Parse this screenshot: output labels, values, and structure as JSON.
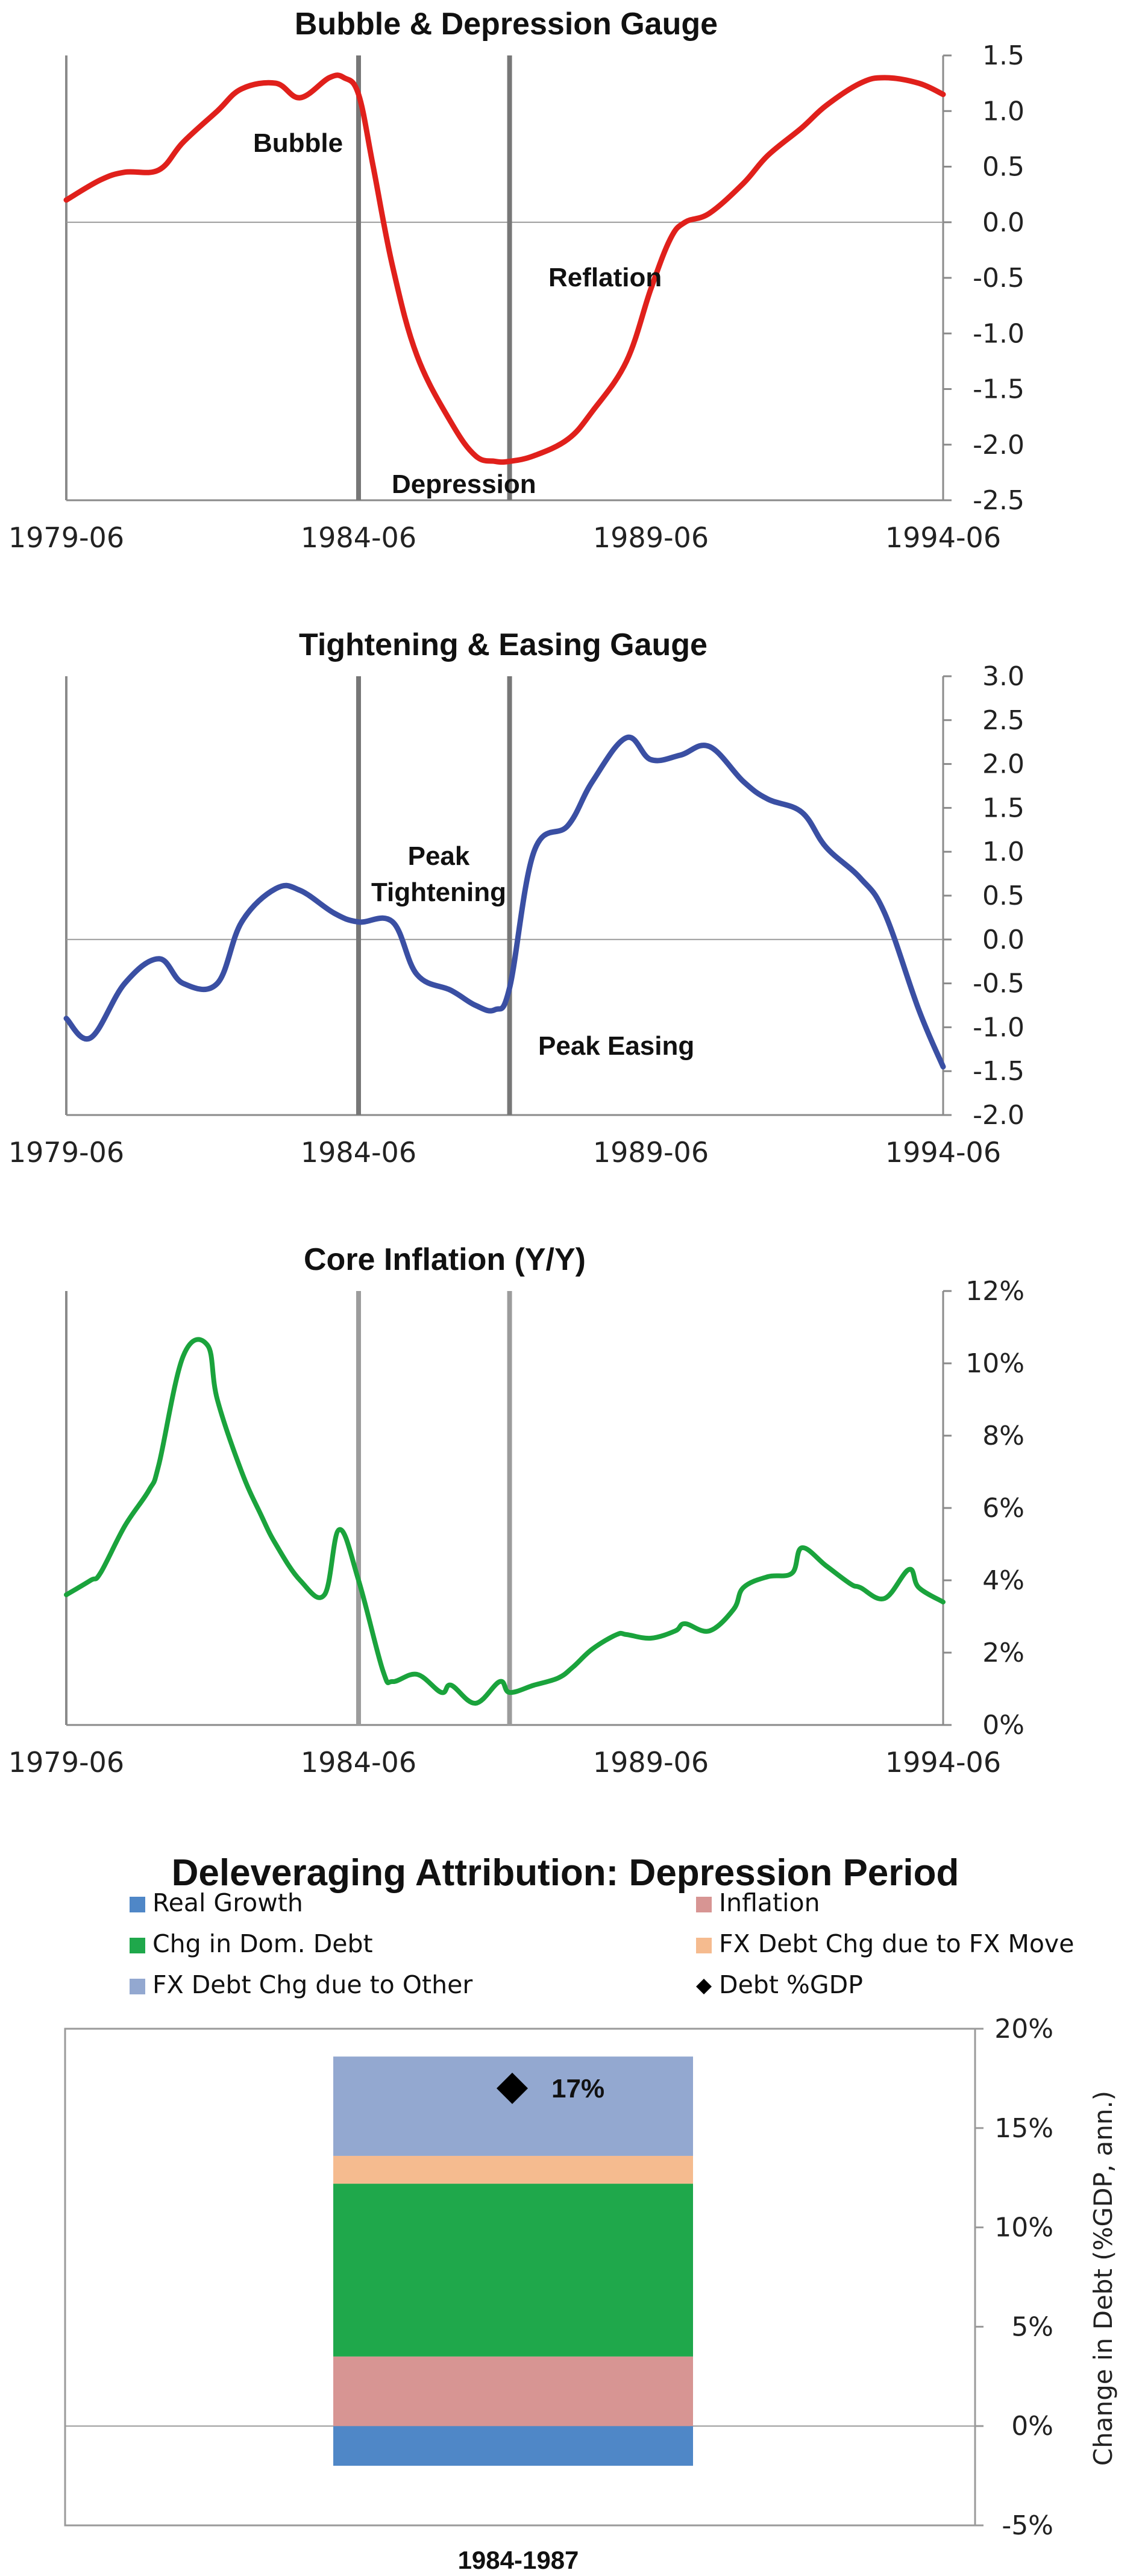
{
  "chart_data": [
    {
      "type": "line",
      "title": "Bubble & Depression Gauge",
      "x_range": [
        "1979-06",
        "1994-06"
      ],
      "x_ticks": [
        "1979-06",
        "1984-06",
        "1989-06",
        "1994-06"
      ],
      "y_ticks": [
        "1.5",
        "1.0",
        "0.5",
        "0.0",
        "-0.5",
        "-1.0",
        "-1.5",
        "-2.0",
        "-2.5"
      ],
      "ylim": [
        -2.5,
        1.5
      ],
      "markers": [
        "1984-06",
        "1987-01"
      ],
      "series": [
        {
          "color": "#e0201b",
          "x": [
            "1979-06",
            "1980-01",
            "1980-06",
            "1981-01",
            "1981-06",
            "1982-01",
            "1982-06",
            "1983-01",
            "1983-06",
            "1983-12",
            "1984-03",
            "1984-06",
            "1984-09",
            "1985-01",
            "1985-06",
            "1986-01",
            "1986-06",
            "1986-10",
            "1987-01",
            "1987-06",
            "1988-01",
            "1988-06",
            "1989-01",
            "1989-06",
            "1989-10",
            "1990-01",
            "1990-06",
            "1991-01",
            "1991-06",
            "1992-01",
            "1992-06",
            "1993-01",
            "1993-06",
            "1994-01",
            "1994-06"
          ],
          "y": [
            0.2,
            0.38,
            0.45,
            0.47,
            0.72,
            1.0,
            1.2,
            1.25,
            1.12,
            1.3,
            1.3,
            1.15,
            0.5,
            -0.4,
            -1.2,
            -1.8,
            -2.1,
            -2.15,
            -2.15,
            -2.1,
            -1.95,
            -1.7,
            -1.25,
            -0.6,
            -0.15,
            0.0,
            0.08,
            0.35,
            0.6,
            0.85,
            1.05,
            1.25,
            1.3,
            1.25,
            1.15
          ]
        }
      ],
      "annotations": [
        "Bubble",
        "Depression",
        "Reflation"
      ]
    },
    {
      "type": "line",
      "title": "Tightening & Easing Gauge",
      "x_range": [
        "1979-06",
        "1994-06"
      ],
      "x_ticks": [
        "1979-06",
        "1984-06",
        "1989-06",
        "1994-06"
      ],
      "y_ticks": [
        "3.0",
        "2.5",
        "2.0",
        "1.5",
        "1.0",
        "0.5",
        "0.0",
        "-0.5",
        "-1.0",
        "-1.5",
        "-2.0"
      ],
      "ylim": [
        -2.0,
        3.0
      ],
      "markers": [
        "1984-06",
        "1987-01"
      ],
      "series": [
        {
          "color": "#3a4fa3",
          "x": [
            "1979-06",
            "1979-11",
            "1980-06",
            "1981-01",
            "1981-06",
            "1982-01",
            "1982-06",
            "1983-01",
            "1983-06",
            "1984-01",
            "1984-06",
            "1985-01",
            "1985-06",
            "1986-01",
            "1986-06",
            "1986-10",
            "1987-01",
            "1987-06",
            "1988-01",
            "1988-06",
            "1989-01",
            "1989-06",
            "1989-12",
            "1990-06",
            "1991-01",
            "1991-06",
            "1992-01",
            "1992-06",
            "1993-01",
            "1993-06",
            "1994-01",
            "1994-06"
          ],
          "y": [
            -0.9,
            -1.12,
            -0.5,
            -0.22,
            -0.5,
            -0.5,
            0.2,
            0.58,
            0.56,
            0.3,
            0.2,
            0.2,
            -0.4,
            -0.58,
            -0.75,
            -0.8,
            -0.55,
            1.0,
            1.3,
            1.8,
            2.3,
            2.05,
            2.1,
            2.2,
            1.8,
            1.6,
            1.45,
            1.05,
            0.7,
            0.3,
            -0.8,
            -1.45
          ]
        }
      ],
      "annotations": [
        "Peak",
        "Tightening",
        "Peak Easing"
      ]
    },
    {
      "type": "line",
      "title": "Core Inflation (Y/Y)",
      "x_range": [
        "1979-06",
        "1994-06"
      ],
      "x_ticks": [
        "1979-06",
        "1984-06",
        "1989-06",
        "1994-06"
      ],
      "y_ticks": [
        "12%",
        "10%",
        "8%",
        "6%",
        "4%",
        "2%",
        "0%"
      ],
      "ylim": [
        0,
        12
      ],
      "markers": [
        "1984-06",
        "1987-01"
      ],
      "series": [
        {
          "color": "#1aa33c",
          "x": [
            "1979-06",
            "1979-11",
            "1980-01",
            "1980-06",
            "1980-11",
            "1981-01",
            "1981-06",
            "1981-11",
            "1982-01",
            "1982-06",
            "1982-10",
            "1983-01",
            "1983-06",
            "1983-11",
            "1984-02",
            "1984-06",
            "1984-11",
            "1985-01",
            "1985-06",
            "1985-11",
            "1986-01",
            "1986-06",
            "1986-11",
            "1987-01",
            "1987-06",
            "1987-11",
            "1988-02",
            "1988-06",
            "1988-11",
            "1989-01",
            "1989-06",
            "1989-11",
            "1990-01",
            "1990-06",
            "1990-11",
            "1991-01",
            "1991-06",
            "1991-11",
            "1992-01",
            "1992-06",
            "1992-11",
            "1993-01",
            "1993-06",
            "1993-11",
            "1994-01",
            "1994-06"
          ],
          "y": [
            3.6,
            4.0,
            4.2,
            5.5,
            6.5,
            7.2,
            10.2,
            10.5,
            9.0,
            7.0,
            5.8,
            5.0,
            4.0,
            3.6,
            5.4,
            4.0,
            1.5,
            1.2,
            1.4,
            0.9,
            1.1,
            0.6,
            1.2,
            0.9,
            1.1,
            1.3,
            1.6,
            2.1,
            2.5,
            2.5,
            2.4,
            2.6,
            2.8,
            2.6,
            3.2,
            3.8,
            4.1,
            4.2,
            4.9,
            4.4,
            3.9,
            3.8,
            3.5,
            4.3,
            3.8,
            3.4
          ]
        }
      ]
    },
    {
      "type": "bar",
      "title": "Deleveraging Attribution: Depression Period",
      "categories": [
        "1984-1987"
      ],
      "ylabel": "Change in Debt (%GDP, ann.)",
      "ylim": [
        -5,
        20
      ],
      "y_ticks": [
        "20%",
        "15%",
        "10%",
        "5%",
        "0%",
        "-5%"
      ],
      "legend": [
        {
          "name": "Real Growth",
          "color": "#4f87c7",
          "kind": "square"
        },
        {
          "name": "Inflation",
          "color": "#d79593",
          "kind": "square"
        },
        {
          "name": "Chg in Dom. Debt",
          "color": "#1fa84b",
          "kind": "square"
        },
        {
          "name": "FX Debt Chg due to FX Move",
          "color": "#f5bb8f",
          "kind": "square"
        },
        {
          "name": "FX Debt Chg due to Other",
          "color": "#93a8d0",
          "kind": "square"
        },
        {
          "name": "Debt %GDP",
          "color": "#000000",
          "kind": "diamond"
        }
      ],
      "series": [
        {
          "name": "Real Growth",
          "values": [
            -2.0
          ]
        },
        {
          "name": "Inflation",
          "values": [
            3.5
          ]
        },
        {
          "name": "Chg in Dom. Debt",
          "values": [
            8.7
          ]
        },
        {
          "name": "FX Debt Chg due to FX Move",
          "values": [
            1.4
          ]
        },
        {
          "name": "FX Debt Chg due to Other",
          "values": [
            5.0
          ]
        }
      ],
      "total_marker": {
        "name": "Debt %GDP",
        "value": 17,
        "label": "17%"
      }
    }
  ]
}
